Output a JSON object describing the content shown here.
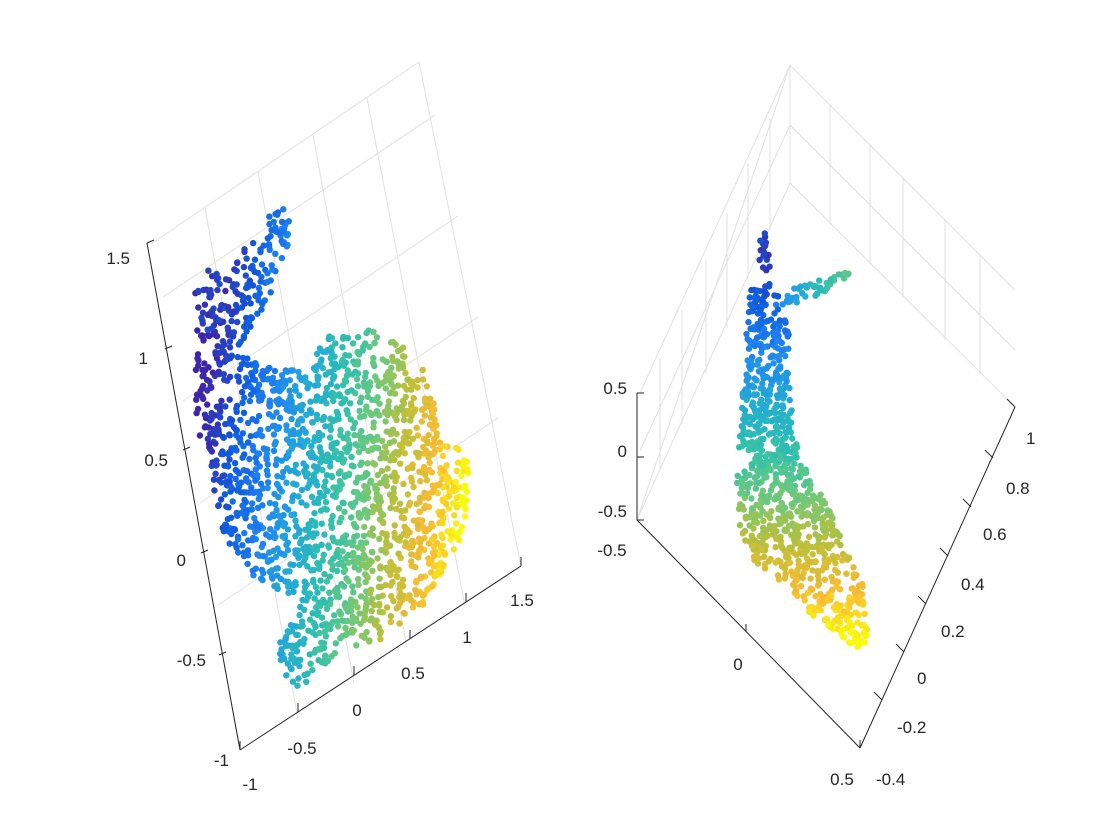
{
  "figure": {
    "colormap": [
      "#3e26a8",
      "#0f5cdd",
      "#1f82f2",
      "#22a8d8",
      "#2ebfb0",
      "#69c97e",
      "#bcbf3a",
      "#f9bc33",
      "#f9fb0e"
    ]
  },
  "chart_data": [
    {
      "type": "scatter3",
      "title": "",
      "xlabel": "",
      "ylabel": "",
      "zlabel": "",
      "xlim": [
        -1,
        1.5
      ],
      "ylim": [
        -1,
        1.5
      ],
      "zlim": [
        -1,
        1.5
      ],
      "xticks": [
        "-1",
        "-0.5",
        "0",
        "0.5",
        "1",
        "1.5"
      ],
      "yticks": [
        "-1",
        "-0.5",
        "0",
        "0.5",
        "1",
        "1.5"
      ],
      "zticks": [
        "-1",
        "-0.5",
        "0",
        "0.5",
        "1",
        "1.5"
      ],
      "grid": true,
      "colormap": "parula",
      "color_by": "x",
      "description_points": "Stanford bunny point cloud, viewed from above"
    },
    {
      "type": "scatter3",
      "title": "",
      "xlabel": "",
      "ylabel": "",
      "zlabel": "",
      "xticks": [
        "-0.5",
        "0",
        "0.5"
      ],
      "yticks": [
        "-0.4",
        "-0.2",
        "0",
        "0.2",
        "0.4",
        "0.6",
        "0.8",
        "1"
      ],
      "zticks": [
        "-0.5",
        "0",
        "0.5"
      ],
      "grid": true,
      "colormap": "parula",
      "color_by": "x",
      "description_points": "Same bunny point cloud, edge-on view"
    }
  ]
}
